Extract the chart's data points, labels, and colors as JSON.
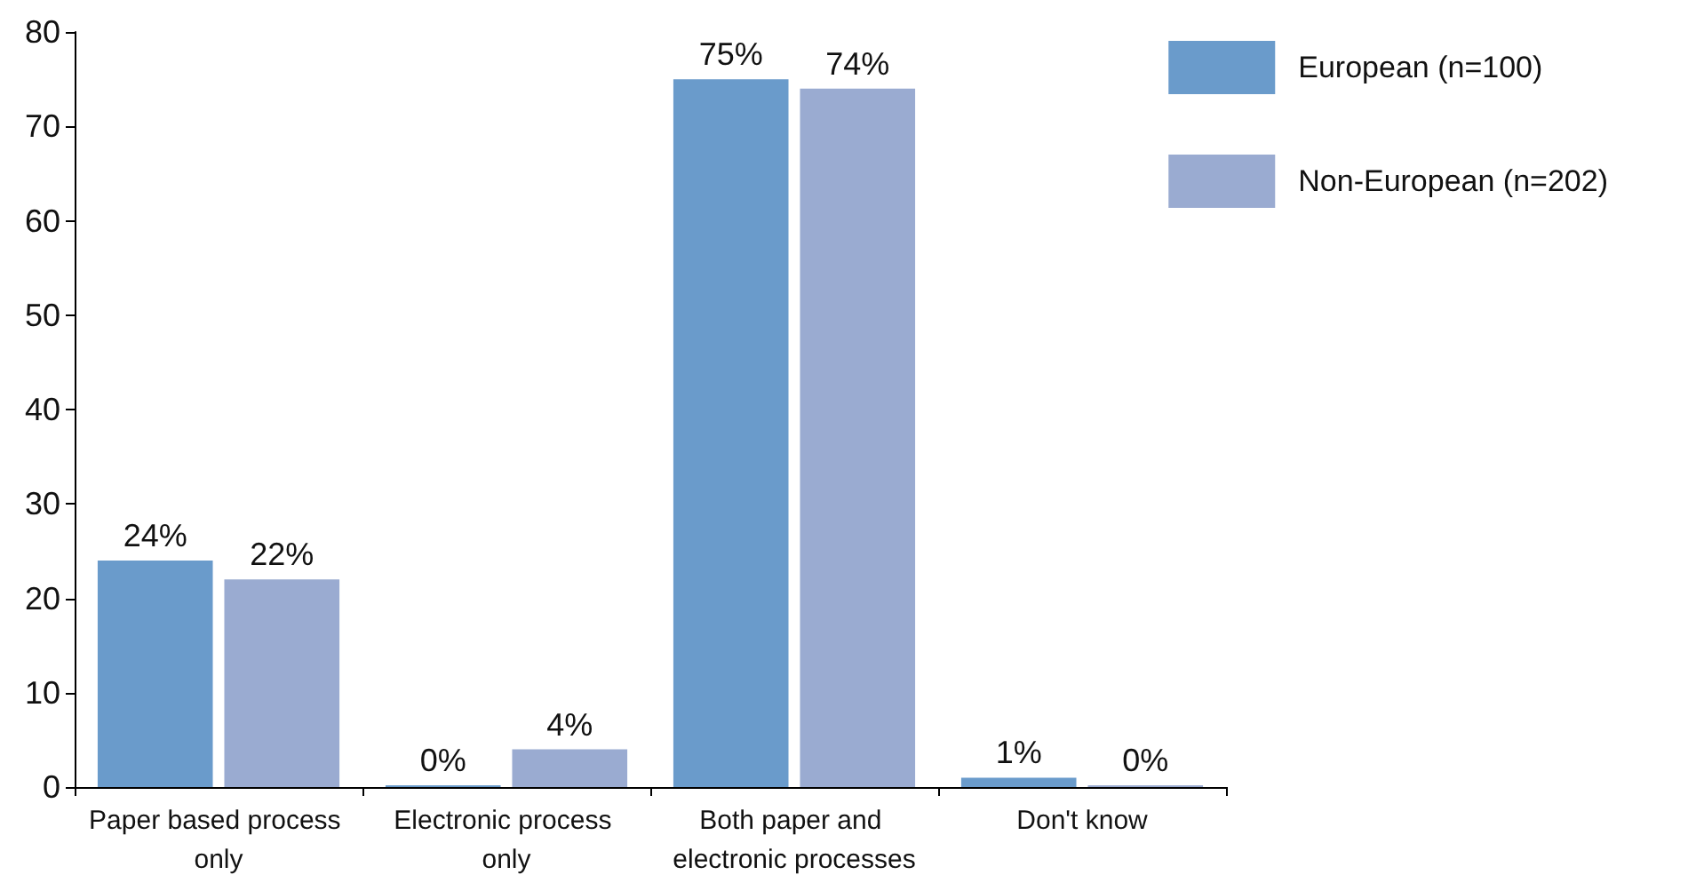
{
  "chart_data": {
    "type": "bar",
    "categories": [
      "Paper based process only",
      "Electronic process only",
      "Both paper and electronic processes",
      "Don't know"
    ],
    "series": [
      {
        "name": "European (n=100)",
        "color": "#6a9bcb",
        "values": [
          24,
          0,
          75,
          1
        ],
        "value_labels": [
          "24%",
          "0%",
          "75%",
          "1%"
        ]
      },
      {
        "name": "Non-European (n=202)",
        "color": "#9aabd1",
        "values": [
          22,
          4,
          74,
          0
        ],
        "value_labels": [
          "22%",
          "4%",
          "74%",
          "0%"
        ]
      }
    ],
    "ylim": [
      0,
      80
    ],
    "yticks": [
      0,
      10,
      20,
      30,
      40,
      50,
      60,
      70,
      80
    ],
    "grid": false,
    "legend": "top right"
  }
}
